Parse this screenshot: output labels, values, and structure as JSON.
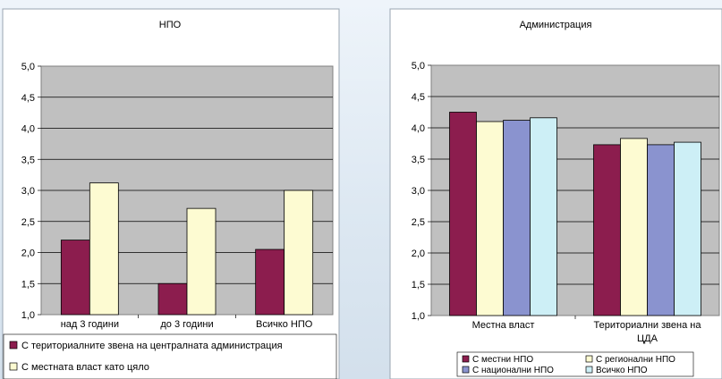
{
  "chart_data": [
    {
      "type": "bar",
      "title": "НПО",
      "categories": [
        "над 3 години",
        "до 3 години",
        "Всичко НПО"
      ],
      "series": [
        {
          "name": "С териториалните звена на централната администрация",
          "values": [
            2.2,
            1.5,
            2.05
          ]
        },
        {
          "name": "С местната власт като цяло",
          "values": [
            3.12,
            2.71,
            3.0
          ]
        }
      ],
      "yticks": [
        "5,0",
        "4,5",
        "4,0",
        "3,5",
        "3,0",
        "2,5",
        "2,0",
        "1,5",
        "1,0"
      ],
      "ylim": [
        1.0,
        5.0
      ],
      "colors": [
        "#8c1d4e",
        "#fdfbd2"
      ],
      "grid": true,
      "legend_position": "bottom"
    },
    {
      "type": "bar",
      "title": "Администрация",
      "categories": [
        [
          "Местна власт"
        ],
        [
          "Териториални звена на",
          "ЦДА"
        ]
      ],
      "series": [
        {
          "name": "С местни НПО",
          "values": [
            4.25,
            3.73
          ]
        },
        {
          "name": "С регионални НПО",
          "values": [
            4.1,
            3.83
          ]
        },
        {
          "name": "С национални НПО",
          "values": [
            4.12,
            3.73
          ]
        },
        {
          "name": "Всичко НПО",
          "values": [
            4.16,
            3.77
          ]
        }
      ],
      "yticks": [
        "5,0",
        "4,5",
        "4,0",
        "3,5",
        "3,0",
        "2,5",
        "2,0",
        "1,5",
        "1,0"
      ],
      "ylim": [
        1.0,
        5.0
      ],
      "colors": [
        "#8c1d4e",
        "#fdfbd2",
        "#8a93cf",
        "#cdeff6"
      ],
      "grid": true,
      "legend_position": "bottom"
    }
  ]
}
